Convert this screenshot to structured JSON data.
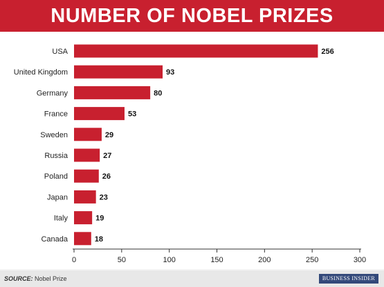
{
  "title": "NUMBER OF NOBEL PRIZES",
  "source": {
    "label": "SOURCE:",
    "text": "Nobel Prize"
  },
  "logo": "BUSINESS INSIDER",
  "colors": {
    "banner": "#c8202f",
    "bar": "#c8202f",
    "footer": "#e8e8e8",
    "logo_bg": "#33497a"
  },
  "chart_data": {
    "type": "bar",
    "orientation": "horizontal",
    "title": "NUMBER OF NOBEL PRIZES",
    "categories": [
      "USA",
      "United Kingdom",
      "Germany",
      "France",
      "Sweden",
      "Russia",
      "Poland",
      "Japan",
      "Italy",
      "Canada"
    ],
    "values": [
      256,
      93,
      80,
      53,
      29,
      27,
      26,
      23,
      19,
      18
    ],
    "data_labels": [
      "256",
      "93",
      "80",
      "53",
      "29",
      "27",
      "26",
      "23",
      "19",
      "18"
    ],
    "xlim": [
      0,
      300
    ],
    "xticks": [
      0,
      50,
      100,
      150,
      200,
      250,
      300
    ],
    "xtick_labels": [
      "0",
      "50",
      "100",
      "150",
      "200",
      "250",
      "300"
    ],
    "xlabel": "",
    "ylabel": "",
    "grid": false,
    "legend": "none"
  }
}
